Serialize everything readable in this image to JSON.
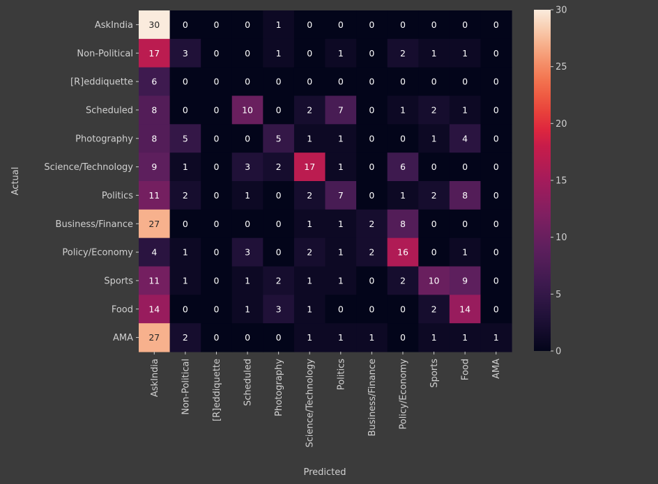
{
  "chart_data": {
    "type": "heatmap",
    "title": "",
    "xlabel": "Predicted",
    "ylabel": "Actual",
    "categories": [
      "AskIndia",
      "Non-Political",
      "[R]eddiquette",
      "Scheduled",
      "Photography",
      "Science/Technology",
      "Politics",
      "Business/Finance",
      "Policy/Economy",
      "Sports",
      "Food",
      "AMA"
    ],
    "values": [
      [
        30,
        0,
        0,
        0,
        1,
        0,
        0,
        0,
        0,
        0,
        0,
        0
      ],
      [
        17,
        3,
        0,
        0,
        1,
        0,
        1,
        0,
        2,
        1,
        1,
        0
      ],
      [
        6,
        0,
        0,
        0,
        0,
        0,
        0,
        0,
        0,
        0,
        0,
        0
      ],
      [
        8,
        0,
        0,
        10,
        0,
        2,
        7,
        0,
        1,
        2,
        1,
        0
      ],
      [
        8,
        5,
        0,
        0,
        5,
        1,
        1,
        0,
        0,
        1,
        4,
        0
      ],
      [
        9,
        1,
        0,
        3,
        2,
        17,
        1,
        0,
        6,
        0,
        0,
        0
      ],
      [
        11,
        2,
        0,
        1,
        0,
        2,
        7,
        0,
        1,
        2,
        8,
        0
      ],
      [
        27,
        0,
        0,
        0,
        0,
        1,
        1,
        2,
        8,
        0,
        0,
        0
      ],
      [
        4,
        1,
        0,
        3,
        0,
        2,
        1,
        2,
        16,
        0,
        1,
        0
      ],
      [
        11,
        1,
        0,
        1,
        2,
        1,
        1,
        0,
        2,
        10,
        9,
        0
      ],
      [
        14,
        0,
        0,
        1,
        3,
        1,
        0,
        0,
        0,
        2,
        14,
        0
      ],
      [
        27,
        2,
        0,
        0,
        0,
        1,
        1,
        1,
        0,
        1,
        1,
        1
      ]
    ],
    "vmin": 0,
    "vmax": 30,
    "colormap": "rocket",
    "colorbar_ticks": [
      0,
      5,
      10,
      15,
      20,
      25,
      30
    ],
    "annotated": true,
    "grid": false,
    "legend": "colorbar-right"
  }
}
